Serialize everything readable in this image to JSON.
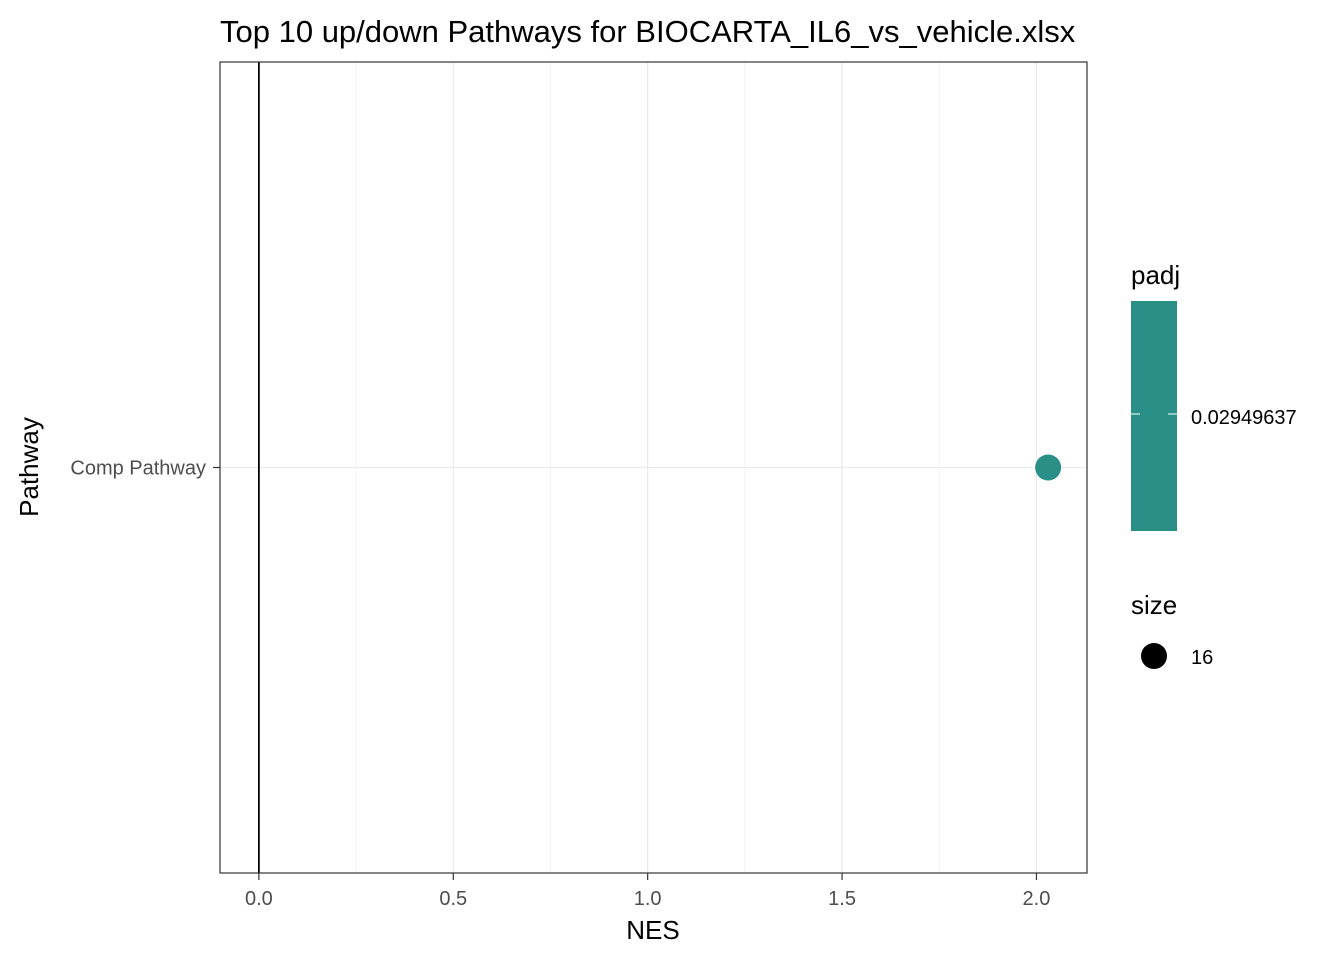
{
  "chart_data": {
    "type": "scatter",
    "title": "Top 10 up/down Pathways for  BIOCARTA_IL6_vs_vehicle.xlsx",
    "xlabel": "NES",
    "ylabel": "Pathway",
    "xlim": [
      -0.1,
      2.13
    ],
    "x_ticks": [
      0.0,
      0.5,
      1.0,
      1.5,
      2.0
    ],
    "x_tick_labels": [
      "0.0",
      "0.5",
      "1.0",
      "1.5",
      "2.0"
    ],
    "categories": [
      "Comp Pathway"
    ],
    "vline_at": 0,
    "grid": true,
    "points": [
      {
        "pathway": "Comp Pathway",
        "NES": 2.03,
        "padj": 0.02949637,
        "size": 16,
        "color": "#2a9087"
      }
    ],
    "legend": {
      "placement": "right",
      "color_title": "padj",
      "color_label": "0.02949637",
      "color_fill": "#2a9087",
      "size_title": "size",
      "size_label": "16"
    }
  }
}
